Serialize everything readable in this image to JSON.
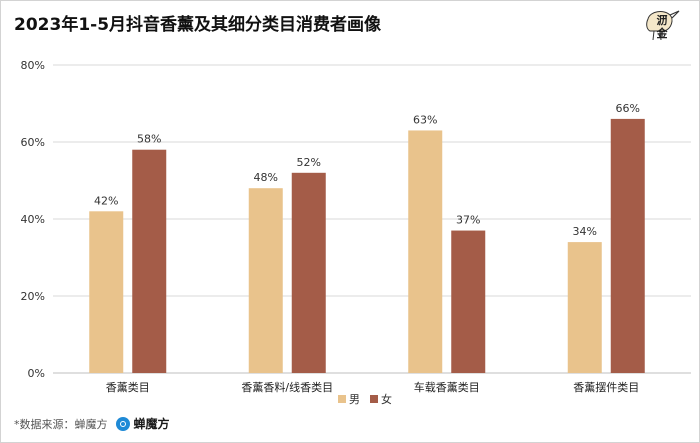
{
  "title": "2023年1-5月抖音香薰及其细分类目消费者画像",
  "logo": {
    "text": "沥金",
    "icon": "kiwi-bird-logo"
  },
  "footer": {
    "source": "*数据来源：蝉魔方",
    "brand": "蝉魔方",
    "brand_icon": "chanmofang-logo-icon"
  },
  "colors": {
    "male": "#e9c38c",
    "female": "#a45c48",
    "grid": "#d9d9d9",
    "axis_text": "#333333"
  },
  "chart_data": {
    "type": "bar",
    "title": "2023年1-5月抖音香薰及其细分类目消费者画像",
    "categories": [
      "香薰类目",
      "香薰香料/线香类目",
      "车载香薰类目",
      "香薰摆件类目"
    ],
    "series": [
      {
        "name": "男",
        "values": [
          42,
          48,
          63,
          34
        ]
      },
      {
        "name": "女",
        "values": [
          58,
          52,
          37,
          66
        ]
      }
    ],
    "value_labels": [
      [
        "42%",
        "48%",
        "63%",
        "34%"
      ],
      [
        "58%",
        "52%",
        "37%",
        "66%"
      ]
    ],
    "ylim": [
      0,
      80
    ],
    "yticks": [
      "0%",
      "20%",
      "40%",
      "60%",
      "80%"
    ],
    "xlabel": "",
    "ylabel": "",
    "grid": true,
    "legend": "bottom"
  }
}
